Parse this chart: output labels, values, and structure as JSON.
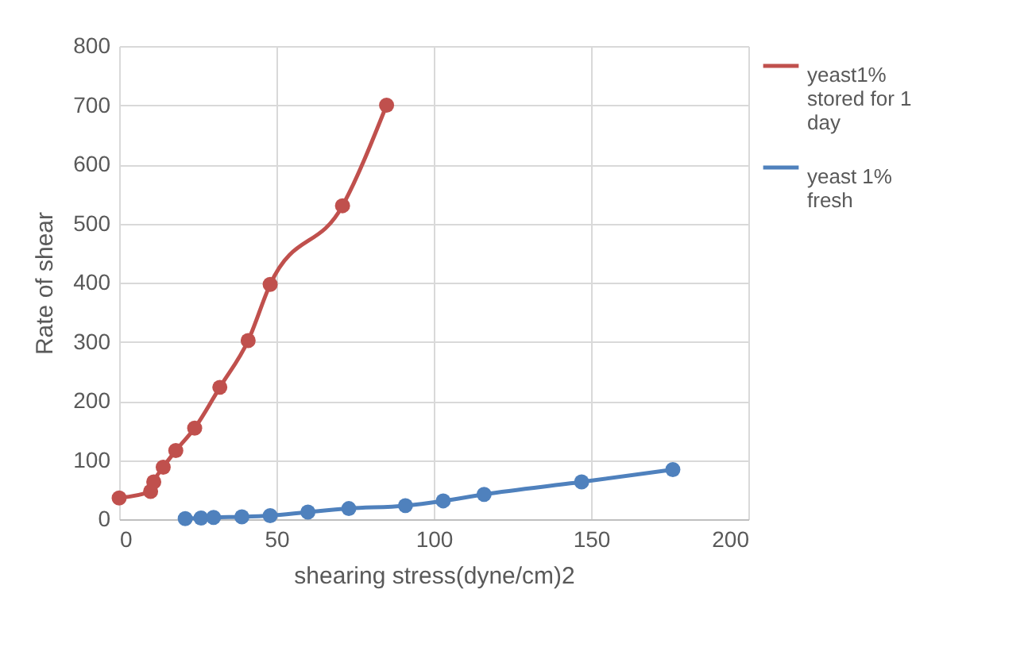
{
  "chart_data": {
    "type": "line",
    "xlabel": "shearing stress(dyne/cm)2",
    "ylabel": "Rate of shear",
    "xlim": [
      0,
      200
    ],
    "ylim": [
      0,
      800
    ],
    "xticks": [
      0,
      50,
      100,
      150,
      200
    ],
    "yticks": [
      0,
      100,
      200,
      300,
      400,
      500,
      600,
      700,
      800
    ],
    "grid": true,
    "legend": "top right",
    "marker": "circle",
    "line_style": "solid",
    "series": [
      {
        "name": "yeast1% stored for 1 day",
        "color": "#c0504d",
        "x": [
          0,
          10,
          11,
          14,
          18,
          24,
          32,
          41,
          48,
          71,
          85
        ],
        "values": [
          36,
          47,
          63,
          88,
          116,
          154,
          223,
          302,
          397,
          530,
          700
        ]
      },
      {
        "name": "yeast 1% fresh",
        "color": "#4f81bd",
        "x": [
          21,
          26,
          30,
          39,
          48,
          60,
          73,
          91,
          103,
          116,
          147,
          176
        ],
        "values": [
          1,
          2,
          3,
          4,
          6,
          12,
          18,
          23,
          31,
          42,
          63,
          84
        ]
      }
    ]
  }
}
